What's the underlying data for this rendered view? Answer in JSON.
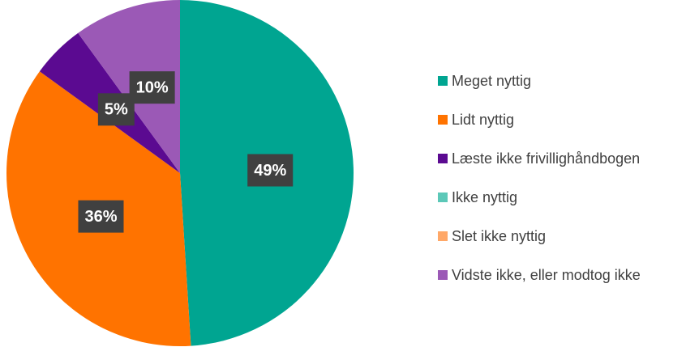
{
  "chart_data": {
    "type": "pie",
    "categories": [
      "Meget nyttig",
      "Lidt nyttig",
      "Læste ikke frivillighåndbogen",
      "Ikke nyttig",
      "Slet ikke nyttig",
      "Vidste ikke, eller modtog ikke"
    ],
    "values": [
      49,
      36,
      5,
      0,
      0,
      10
    ],
    "value_labels": [
      "49%",
      "36%",
      "5%",
      null,
      null,
      "10%"
    ],
    "colors": [
      "#00a591",
      "#ff7300",
      "#5b0a91",
      "#5cc8b8",
      "#ffa868",
      "#9b59b6"
    ],
    "legend": "right"
  }
}
